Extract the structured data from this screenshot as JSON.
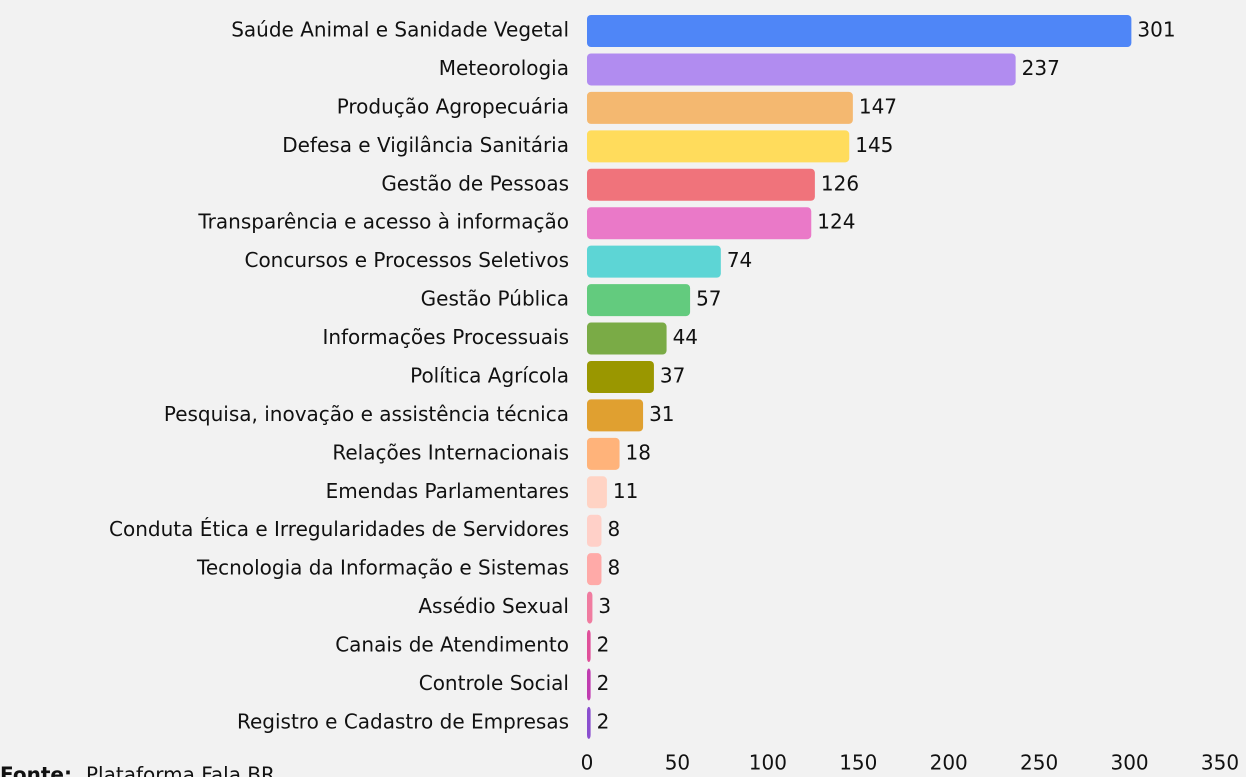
{
  "chart_data": {
    "type": "bar",
    "orientation": "horizontal",
    "categories": [
      "Saúde Animal e Sanidade Vegetal",
      "Meteorologia",
      "Produção Agropecuária",
      "Defesa e Vigilância Sanitária",
      "Gestão de Pessoas",
      "Transparência e acesso à informação",
      "Concursos e Processos Seletivos",
      "Gestão Pública",
      "Informações Processuais",
      "Política Agrícola",
      "Pesquisa, inovação e assistência técnica",
      "Relações Internacionais",
      "Emendas Parlamentares",
      "Conduta Ética e Irregularidades de Servidores",
      "Tecnologia da Informação e Sistemas",
      "Assédio Sexual",
      "Canais de Atendimento",
      "Controle Social",
      "Registro e Cadastro de Empresas"
    ],
    "values": [
      301,
      237,
      147,
      145,
      126,
      124,
      74,
      57,
      44,
      37,
      31,
      18,
      11,
      8,
      8,
      3,
      2,
      2,
      2
    ],
    "colors": [
      "#4f86f7",
      "#b18cf0",
      "#f4b870",
      "#ffdc5c",
      "#f0737b",
      "#ea79c8",
      "#5dd5d5",
      "#63cb7e",
      "#7aab46",
      "#9a9700",
      "#e0a030",
      "#ffb37a",
      "#ffd3c4",
      "#ffd0c8",
      "#ffaaa8",
      "#f07ca0",
      "#e0509a",
      "#c03cb0",
      "#8a4fcf"
    ],
    "xlim": [
      0,
      350
    ],
    "xticks": [
      0,
      50,
      100,
      150,
      200,
      250,
      300,
      350
    ],
    "grid": false,
    "source_label": "Fonte:",
    "source": "Plataforma Fala.BR"
  }
}
